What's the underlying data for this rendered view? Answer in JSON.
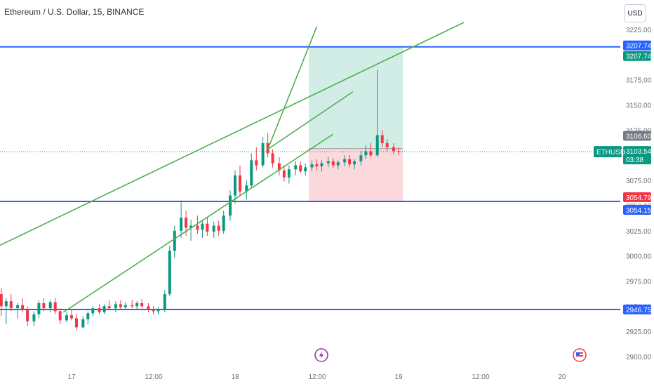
{
  "header": {
    "title": "Ethereum / U.S. Dollar, 15, BINANCE",
    "currency_button": "USD"
  },
  "chart_data": {
    "type": "candlestick",
    "symbol": "ETHUSD",
    "ylim": [
      2900,
      3225
    ],
    "yticks": [
      "2900.00",
      "2925.00",
      "2950.00",
      "2975.00",
      "3000.00",
      "3025.00",
      "3050.00",
      "3075.00",
      "3100.00",
      "3125.00",
      "3150.00",
      "3175.00",
      "3200.00",
      "3225.00"
    ],
    "xticks": [
      "17",
      "12:00",
      "18",
      "12:00",
      "19",
      "12:00",
      "20"
    ],
    "horizontal_levels": [
      3207.74,
      3054.15,
      2946.75
    ],
    "price_labels": [
      {
        "text": "3207.74",
        "color": "#2962ff"
      },
      {
        "text": "3207.74",
        "color": "#089981"
      },
      {
        "text": "3106.60",
        "color": "#787b86"
      },
      {
        "text": "ETHUSD",
        "color": "#089981"
      },
      {
        "text": "3103.54",
        "color": "#089981"
      },
      {
        "text": "03:38",
        "color": "#089981"
      },
      {
        "text": "3054.79",
        "color": "#f23645"
      },
      {
        "text": "3054.15",
        "color": "#2962ff"
      },
      {
        "text": "2946.75",
        "color": "#2962ff"
      }
    ],
    "position": {
      "entry": 3106.6,
      "target": 3207.74,
      "stop": 3054.79
    },
    "last_price": 3103.54,
    "colors": {
      "up": "#089981",
      "down": "#f23645",
      "level": "#2962ff",
      "channel": "#4caf50",
      "profit_zone": "#d1ede6",
      "loss_zone": "#fbd9dc"
    },
    "trend_lines": [
      {
        "from": [
          15.85,
          2955
        ],
        "to": [
          19.4,
          3232
        ]
      },
      {
        "from": [
          16.95,
          2944
        ],
        "to": [
          18.6,
          3121
        ]
      },
      {
        "from": [
          18.2,
          3106
        ],
        "to": [
          18.72,
          3163
        ]
      },
      {
        "from": [
          18.2,
          3106
        ],
        "to": [
          18.5,
          3228
        ]
      }
    ],
    "candles": [
      [
        16.0,
        3020,
        3021,
        3016,
        3017
      ],
      [
        16.03,
        3017,
        3022,
        3014,
        3020
      ],
      [
        16.07,
        3020,
        3024,
        3015,
        3016
      ],
      [
        16.1,
        3016,
        3018,
        3008,
        3010
      ],
      [
        16.13,
        3010,
        3013,
        3005,
        3011
      ],
      [
        16.17,
        3011,
        3014,
        3004,
        3006
      ],
      [
        16.2,
        3006,
        3009,
        2998,
        3002
      ],
      [
        16.23,
        3002,
        3006,
        2997,
        3004
      ],
      [
        16.27,
        3004,
        3008,
        2996,
        2998
      ],
      [
        16.3,
        2998,
        3003,
        2992,
        3000
      ],
      [
        16.33,
        3000,
        3004,
        2990,
        2995
      ],
      [
        16.37,
        2995,
        3000,
        2986,
        2990
      ],
      [
        16.4,
        2990,
        2994,
        2981,
        2985
      ],
      [
        16.43,
        2985,
        2992,
        2980,
        2988
      ],
      [
        16.47,
        2988,
        2992,
        2972,
        2975
      ],
      [
        16.5,
        2975,
        2982,
        2966,
        2978
      ],
      [
        16.53,
        2978,
        2983,
        2958,
        2962
      ],
      [
        16.57,
        2962,
        2968,
        2940,
        2950
      ],
      [
        16.6,
        2950,
        2958,
        2932,
        2955
      ],
      [
        16.63,
        2955,
        2962,
        2945,
        2948
      ],
      [
        16.67,
        2948,
        2953,
        2938,
        2951
      ],
      [
        16.7,
        2951,
        2958,
        2944,
        2946
      ],
      [
        16.73,
        2946,
        2950,
        2930,
        2935
      ],
      [
        16.77,
        2935,
        2945,
        2930,
        2942
      ],
      [
        16.8,
        2942,
        2956,
        2938,
        2953
      ],
      [
        16.83,
        2953,
        2958,
        2945,
        2948
      ],
      [
        16.87,
        2948,
        2956,
        2944,
        2954
      ],
      [
        16.9,
        2954,
        2958,
        2942,
        2945
      ],
      [
        16.93,
        2945,
        2948,
        2932,
        2936
      ],
      [
        16.97,
        2936,
        2944,
        2934,
        2941
      ],
      [
        17.0,
        2941,
        2947,
        2936,
        2938
      ],
      [
        17.03,
        2938,
        2942,
        2926,
        2929
      ],
      [
        17.07,
        2929,
        2940,
        2928,
        2937
      ],
      [
        17.1,
        2937,
        2945,
        2932,
        2943
      ],
      [
        17.13,
        2943,
        2950,
        2940,
        2948
      ],
      [
        17.17,
        2948,
        2952,
        2942,
        2944
      ],
      [
        17.2,
        2944,
        2952,
        2942,
        2950
      ],
      [
        17.23,
        2950,
        2956,
        2946,
        2948
      ],
      [
        17.27,
        2948,
        2955,
        2944,
        2952
      ],
      [
        17.3,
        2952,
        2956,
        2947,
        2949
      ],
      [
        17.33,
        2949,
        2954,
        2946,
        2951
      ],
      [
        17.37,
        2951,
        2956,
        2948,
        2950
      ],
      [
        17.4,
        2950,
        2955,
        2946,
        2953
      ],
      [
        17.43,
        2953,
        2957,
        2948,
        2950
      ],
      [
        17.47,
        2950,
        2953,
        2944,
        2947
      ],
      [
        17.5,
        2947,
        2950,
        2942,
        2945
      ],
      [
        17.53,
        2945,
        2949,
        2942,
        2946
      ],
      [
        17.57,
        2946,
        2966,
        2944,
        2962
      ],
      [
        17.6,
        2962,
        3010,
        2960,
        3005
      ],
      [
        17.63,
        3005,
        3030,
        2998,
        3025
      ],
      [
        17.67,
        3025,
        3055,
        3018,
        3038
      ],
      [
        17.7,
        3038,
        3045,
        3020,
        3028
      ],
      [
        17.73,
        3028,
        3036,
        3015,
        3030
      ],
      [
        17.77,
        3030,
        3040,
        3022,
        3026
      ],
      [
        17.8,
        3026,
        3035,
        3018,
        3032
      ],
      [
        17.83,
        3032,
        3038,
        3020,
        3024
      ],
      [
        17.87,
        3024,
        3034,
        3018,
        3030
      ],
      [
        17.9,
        3030,
        3035,
        3020,
        3025
      ],
      [
        17.93,
        3025,
        3045,
        3022,
        3040
      ],
      [
        17.97,
        3040,
        3065,
        3035,
        3060
      ],
      [
        18.0,
        3060,
        3085,
        3052,
        3080
      ],
      [
        18.03,
        3080,
        3090,
        3060,
        3064
      ],
      [
        18.07,
        3064,
        3075,
        3056,
        3070
      ],
      [
        18.1,
        3070,
        3102,
        3068,
        3095
      ],
      [
        18.13,
        3095,
        3108,
        3085,
        3090
      ],
      [
        18.17,
        3090,
        3118,
        3088,
        3112
      ],
      [
        18.2,
        3112,
        3122,
        3098,
        3102
      ],
      [
        18.23,
        3102,
        3106,
        3088,
        3092
      ],
      [
        18.27,
        3092,
        3098,
        3080,
        3085
      ],
      [
        18.3,
        3085,
        3090,
        3074,
        3078
      ],
      [
        18.33,
        3078,
        3090,
        3072,
        3086
      ],
      [
        18.37,
        3086,
        3094,
        3080,
        3090
      ],
      [
        18.4,
        3090,
        3094,
        3082,
        3084
      ],
      [
        18.43,
        3084,
        3092,
        3080,
        3088
      ],
      [
        18.47,
        3088,
        3095,
        3084,
        3091
      ],
      [
        18.5,
        3091,
        3096,
        3085,
        3089
      ],
      [
        18.53,
        3089,
        3095,
        3084,
        3092
      ],
      [
        18.57,
        3092,
        3098,
        3088,
        3094
      ],
      [
        18.6,
        3094,
        3097,
        3087,
        3090
      ],
      [
        18.63,
        3090,
        3095,
        3086,
        3093
      ],
      [
        18.67,
        3093,
        3100,
        3089,
        3096
      ],
      [
        18.7,
        3096,
        3100,
        3088,
        3091
      ],
      [
        18.73,
        3091,
        3096,
        3086,
        3094
      ],
      [
        18.77,
        3094,
        3104,
        3090,
        3100
      ],
      [
        18.8,
        3100,
        3110,
        3096,
        3104
      ],
      [
        18.83,
        3104,
        3112,
        3098,
        3100
      ],
      [
        18.87,
        3100,
        3185,
        3098,
        3120
      ],
      [
        18.9,
        3120,
        3125,
        3108,
        3112
      ],
      [
        18.93,
        3112,
        3116,
        3104,
        3108
      ],
      [
        18.97,
        3108,
        3112,
        3101,
        3104
      ],
      [
        19.0,
        3104,
        3108,
        3100,
        3103.54
      ]
    ]
  }
}
